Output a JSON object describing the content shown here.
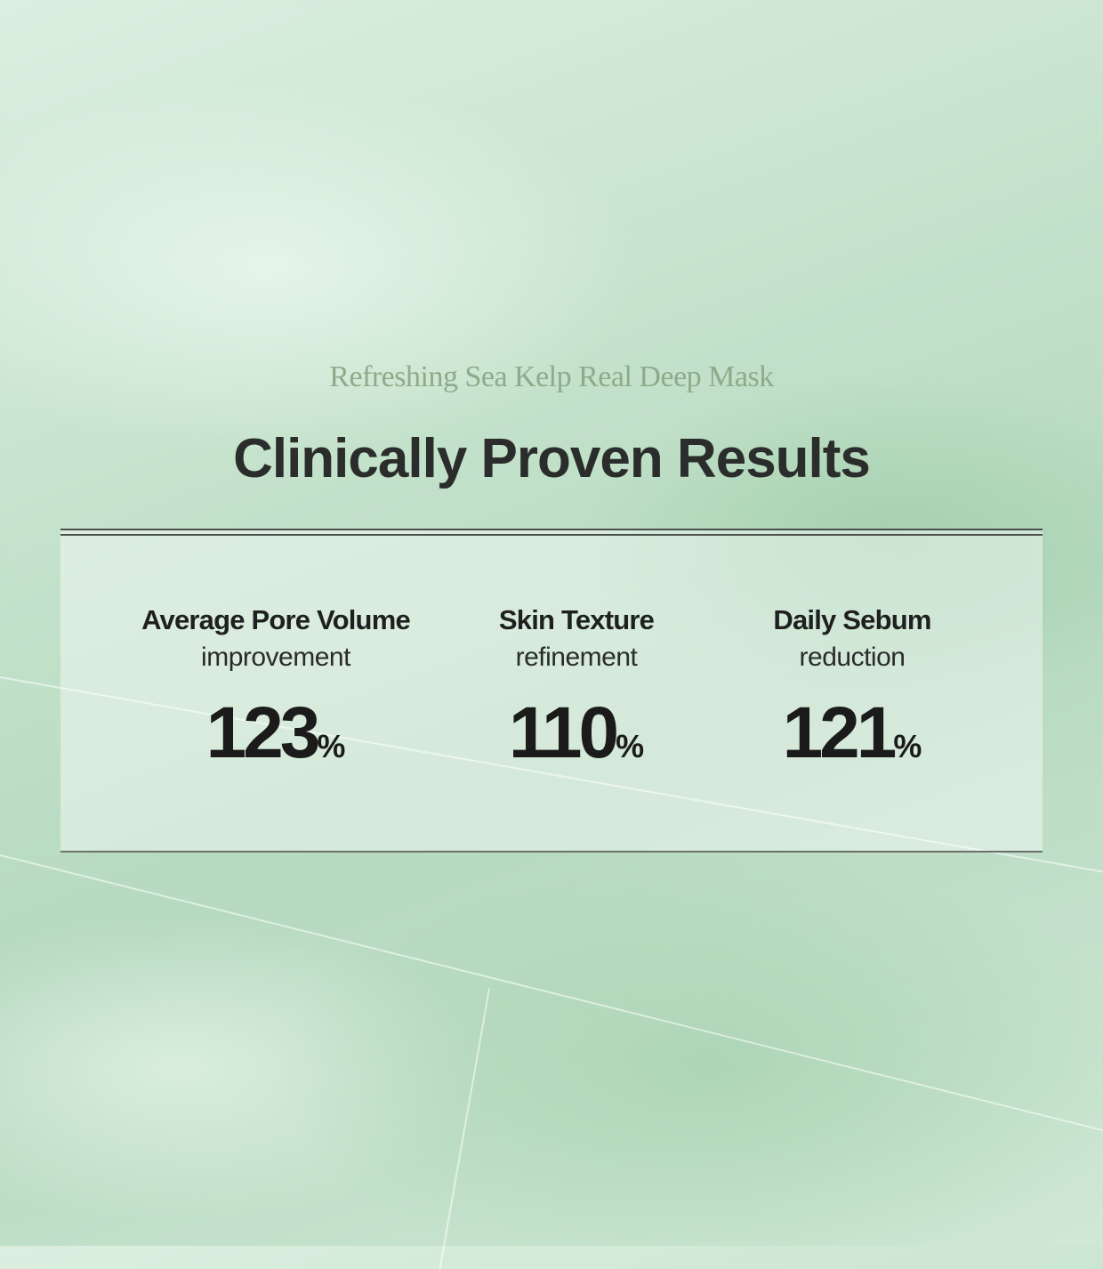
{
  "header": {
    "product_name": "Refreshing Sea Kelp Real Deep Mask",
    "title": "Clinically Proven Results"
  },
  "results": [
    {
      "label": "Average Pore Volume",
      "descriptor": "improvement",
      "value": "123",
      "unit": "%"
    },
    {
      "label": "Skin Texture",
      "descriptor": "refinement",
      "value": "110",
      "unit": "%"
    },
    {
      "label": "Daily Sebum",
      "descriptor": "reduction",
      "value": "121",
      "unit": "%"
    }
  ],
  "colors": {
    "background": "#c4e2cb",
    "subtitle": "#8faa8a",
    "title": "#2a2d2b"
  }
}
